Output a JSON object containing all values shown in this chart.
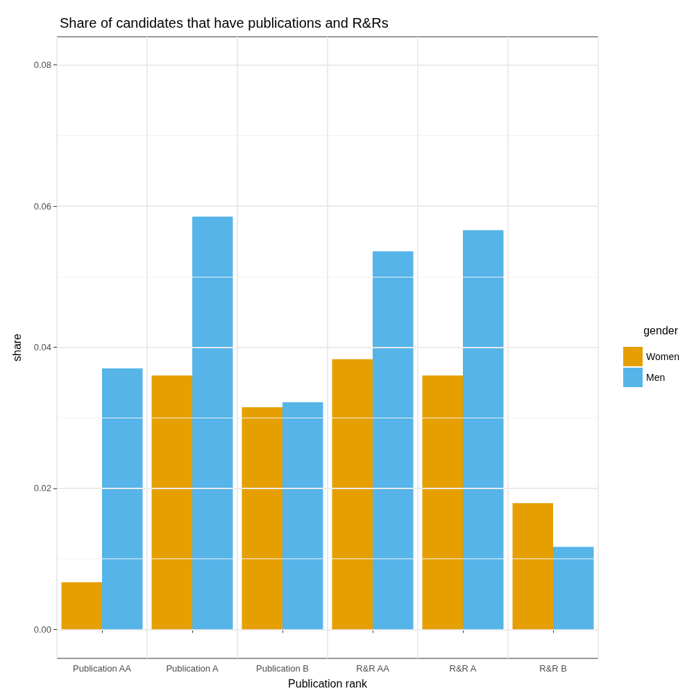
{
  "chart_data": {
    "type": "bar",
    "title": "Share of candidates that have publications and R&Rs",
    "xlabel": "Publication rank",
    "ylabel": "share",
    "legend_title": "gender",
    "categories": [
      "Publication AA",
      "Publication A",
      "Publication B",
      "R&R AA",
      "R&R A",
      "R&R B"
    ],
    "series": [
      {
        "name": "Women",
        "color": "#e69f00",
        "values": [
          0.0067,
          0.036,
          0.0315,
          0.0383,
          0.036,
          0.0179
        ]
      },
      {
        "name": "Men",
        "color": "#56b4e9",
        "values": [
          0.037,
          0.0585,
          0.0322,
          0.0536,
          0.0566,
          0.0117
        ]
      }
    ],
    "ylim": [
      -0.0041,
      0.084
    ],
    "yticks": [
      {
        "value": 0,
        "label": "0.00"
      },
      0.02,
      0.04,
      0.06,
      0.08
    ],
    "grid": true,
    "legend": "right"
  }
}
